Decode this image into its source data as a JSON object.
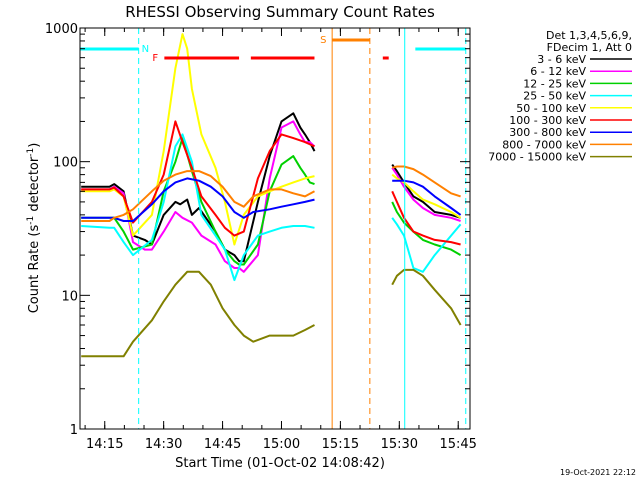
{
  "chart_data": {
    "type": "line",
    "title": "RHESSI Observing Summary Count Rates",
    "xlabel": "Start Time (01-Oct-02 14:08:42)",
    "ylabel_main": "Count Rate (s",
    "ylabel_sup1": "-1",
    "ylabel_mid": " detector",
    "ylabel_sup2": "-1",
    "ylabel_end": ")",
    "y_scale": "log",
    "ylim": [
      1,
      1000
    ],
    "xlim": [
      "14:08:42",
      "15:48:00"
    ],
    "x_ticks": [
      "14:15",
      "14:30",
      "14:45",
      "15:00",
      "15:15",
      "15:30",
      "15:45"
    ],
    "y_ticks": [
      "1",
      "10",
      "100",
      "1000"
    ],
    "legend_header": [
      "Det 1,3,4,5,6,9,",
      "FDecim 1, Att 0"
    ],
    "legend_position": "top-right",
    "series": [
      {
        "name": "3 - 6 keV",
        "color": "#000000",
        "x": [
          14.15,
          14.27,
          14.29,
          14.33,
          14.37,
          14.42,
          14.45,
          14.5,
          14.55,
          14.57,
          14.6,
          14.62,
          14.65,
          14.72,
          14.76,
          14.8,
          14.82,
          14.84,
          14.9,
          14.95,
          15.0,
          15.05,
          15.08,
          15.1,
          15.12,
          15.14,
          15.47,
          15.49,
          15.52,
          15.56,
          15.6,
          15.65,
          15.72,
          15.76
        ],
        "y": [
          65,
          65,
          68,
          60,
          28,
          26,
          24,
          40,
          50,
          48,
          52,
          40,
          45,
          30,
          22,
          20,
          18,
          18,
          50,
          110,
          200,
          230,
          180,
          160,
          140,
          120,
          95,
          85,
          70,
          55,
          50,
          42,
          40,
          38
        ]
      },
      {
        "name": "6 - 12 keV",
        "color": "#ff00ff",
        "x": [
          14.15,
          14.27,
          14.29,
          14.33,
          14.37,
          14.42,
          14.45,
          14.5,
          14.55,
          14.58,
          14.62,
          14.66,
          14.72,
          14.76,
          14.8,
          14.82,
          14.84,
          14.9,
          14.95,
          15.0,
          15.05,
          15.08,
          15.1,
          15.12,
          15.14,
          15.47,
          15.49,
          15.52,
          15.56,
          15.6,
          15.65,
          15.72,
          15.76
        ],
        "y": [
          62,
          62,
          65,
          58,
          25,
          22,
          22,
          30,
          42,
          38,
          35,
          28,
          24,
          18,
          16,
          16,
          15,
          20,
          75,
          180,
          200,
          160,
          140,
          140,
          130,
          90,
          80,
          65,
          52,
          45,
          40,
          38,
          36
        ]
      },
      {
        "name": "12 - 25 keV",
        "color": "#00d000",
        "x": [
          14.15,
          14.27,
          14.29,
          14.33,
          14.37,
          14.45,
          14.5,
          14.55,
          14.58,
          14.62,
          14.66,
          14.72,
          14.76,
          14.8,
          14.82,
          14.84,
          14.9,
          14.95,
          15.0,
          15.05,
          15.08,
          15.1,
          15.12,
          15.14,
          15.47,
          15.49,
          15.52,
          15.56,
          15.6,
          15.65,
          15.72,
          15.76
        ],
        "y": [
          38,
          38,
          38,
          30,
          22,
          24,
          60,
          100,
          150,
          85,
          50,
          30,
          22,
          18,
          17,
          17,
          24,
          60,
          95,
          110,
          90,
          80,
          70,
          68,
          50,
          42,
          35,
          30,
          26,
          24,
          22,
          20
        ]
      },
      {
        "name": "25 - 50 keV",
        "color": "#00ffff",
        "x": [
          14.15,
          14.27,
          14.29,
          14.33,
          14.37,
          14.45,
          14.5,
          14.55,
          14.58,
          14.62,
          14.66,
          14.72,
          14.76,
          14.8,
          14.84,
          14.9,
          14.95,
          15.0,
          15.05,
          15.1,
          15.14,
          15.47,
          15.49,
          15.52,
          15.56,
          15.6,
          15.65,
          15.72,
          15.76
        ],
        "y": [
          33,
          32,
          32,
          25,
          20,
          26,
          50,
          130,
          160,
          100,
          40,
          28,
          22,
          13,
          20,
          28,
          30,
          32,
          33,
          33,
          32,
          38,
          34,
          28,
          16,
          15,
          20,
          28,
          34
        ]
      },
      {
        "name": "50 - 100 keV",
        "color": "#ffff00",
        "x": [
          14.15,
          14.27,
          14.29,
          14.33,
          14.37,
          14.45,
          14.5,
          14.55,
          14.58,
          14.6,
          14.62,
          14.66,
          14.72,
          14.76,
          14.8,
          14.84,
          14.9,
          14.95,
          15.0,
          15.05,
          15.1,
          15.14,
          15.47,
          15.49,
          15.52,
          15.56,
          15.6,
          15.65,
          15.72,
          15.76
        ],
        "y": [
          60,
          60,
          62,
          55,
          28,
          40,
          120,
          500,
          900,
          700,
          350,
          160,
          90,
          50,
          24,
          40,
          55,
          60,
          65,
          70,
          75,
          78,
          80,
          75,
          70,
          60,
          52,
          48,
          42,
          38
        ]
      },
      {
        "name": "100 - 300 keV",
        "color": "#ff0000",
        "x": [
          14.15,
          14.27,
          14.29,
          14.33,
          14.37,
          14.45,
          14.5,
          14.55,
          14.58,
          14.62,
          14.66,
          14.72,
          14.76,
          14.8,
          14.84,
          14.9,
          14.95,
          15.0,
          15.05,
          15.1,
          15.14,
          15.47,
          15.49,
          15.52,
          15.56,
          15.6,
          15.65,
          15.72,
          15.76
        ],
        "y": [
          62,
          62,
          64,
          55,
          35,
          50,
          80,
          200,
          140,
          90,
          55,
          40,
          32,
          28,
          30,
          75,
          120,
          160,
          150,
          140,
          130,
          60,
          50,
          38,
          30,
          28,
          26,
          25,
          24
        ]
      },
      {
        "name": "300 - 800 keV",
        "color": "#0000ff",
        "x": [
          14.15,
          14.27,
          14.29,
          14.33,
          14.37,
          14.45,
          14.5,
          14.55,
          14.6,
          14.65,
          14.7,
          14.75,
          14.8,
          14.84,
          14.88,
          14.95,
          15.0,
          15.05,
          15.1,
          15.14,
          15.47,
          15.49,
          15.52,
          15.56,
          15.6,
          15.65,
          15.72,
          15.76
        ],
        "y": [
          38,
          38,
          38,
          36,
          36,
          48,
          60,
          70,
          75,
          72,
          65,
          55,
          42,
          38,
          42,
          44,
          46,
          48,
          50,
          52,
          72,
          72,
          72,
          70,
          65,
          55,
          45,
          40
        ]
      },
      {
        "name": "800 - 7000 keV",
        "color": "#ff8000",
        "x": [
          14.15,
          14.27,
          14.29,
          14.33,
          14.37,
          14.45,
          14.5,
          14.55,
          14.6,
          14.65,
          14.7,
          14.75,
          14.8,
          14.84,
          14.88,
          14.95,
          15.0,
          15.05,
          15.1,
          15.14,
          15.47,
          15.49,
          15.52,
          15.56,
          15.6,
          15.65,
          15.72,
          15.76
        ],
        "y": [
          36,
          36,
          38,
          40,
          44,
          60,
          72,
          80,
          85,
          85,
          78,
          65,
          50,
          46,
          55,
          62,
          62,
          58,
          55,
          60,
          90,
          92,
          92,
          88,
          80,
          70,
          58,
          55
        ]
      },
      {
        "name": "7000 - 15000 keV",
        "color": "#808000",
        "x": [
          14.15,
          14.27,
          14.29,
          14.33,
          14.37,
          14.45,
          14.5,
          14.55,
          14.6,
          14.65,
          14.7,
          14.75,
          14.8,
          14.84,
          14.88,
          14.95,
          15.0,
          15.05,
          15.1,
          15.14,
          15.47,
          15.49,
          15.52,
          15.56,
          15.6,
          15.65,
          15.72,
          15.76
        ],
        "y": [
          3.5,
          3.5,
          3.5,
          3.5,
          4.5,
          6.5,
          9,
          12,
          15,
          15,
          12,
          8,
          6,
          5,
          4.5,
          5,
          5,
          5,
          5.5,
          6,
          12,
          14,
          15.5,
          15.5,
          14,
          11,
          8,
          6
        ]
      }
    ],
    "markers": [
      {
        "label": "N",
        "color": "#00ffff",
        "bars_x": [
          [
            14.145,
            14.394
          ],
          [
            15.568,
            15.782
          ]
        ],
        "dashed_lines_x": [
          14.394,
          15.782
        ],
        "solid_lines_x": [
          15.523
        ]
      },
      {
        "label": "F",
        "color": "#ff0000",
        "bars_x": [
          [
            14.503,
            14.82
          ],
          [
            14.87,
            15.14
          ],
          [
            15.43,
            15.455
          ]
        ]
      },
      {
        "label": "S",
        "color": "#ff8000",
        "bars_x": [
          [
            15.215,
            15.375
          ]
        ],
        "dashed_lines_x": [
          15.375
        ],
        "solid_lines_x": [
          15.215
        ]
      }
    ],
    "gap_x": [
      15.14,
      15.47
    ],
    "grid": false
  },
  "footer": {
    "date": "19-Oct-2021 22:12"
  }
}
